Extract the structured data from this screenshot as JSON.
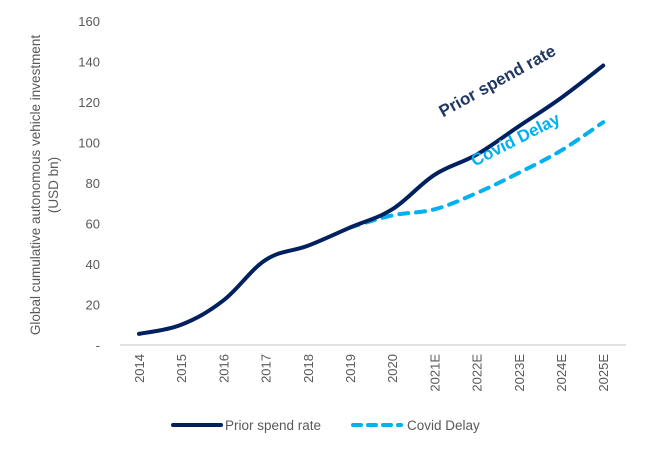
{
  "chart_data": {
    "type": "line",
    "title": "",
    "xlabel": "",
    "ylabel": "Global cumulative autonomous vehicle investment (USD bn)",
    "ylabel_lines": [
      "Global cumulative autonomous vehicle investment",
      "(USD bn)"
    ],
    "ylim": [
      0,
      160
    ],
    "yticks": [
      0,
      20,
      40,
      60,
      80,
      100,
      120,
      140,
      160
    ],
    "ytick_labels": [
      "-",
      "20",
      "40",
      "60",
      "80",
      "100",
      "120",
      "140",
      "160"
    ],
    "grid": false,
    "categories": [
      "2014",
      "2015",
      "2016",
      "2017",
      "2018",
      "2019",
      "2020",
      "2021E",
      "2022E",
      "2023E",
      "2024E",
      "2025E"
    ],
    "series": [
      {
        "name": "Prior spend rate",
        "style": "solid",
        "color": "#002060",
        "values": [
          5.5,
          10,
          22,
          42,
          49,
          58,
          67,
          84,
          94,
          108,
          122,
          138
        ]
      },
      {
        "name": "Covid Delay",
        "style": "dashed",
        "color": "#00B0F0",
        "values": [
          null,
          null,
          null,
          null,
          null,
          58,
          64,
          67,
          75,
          85,
          96,
          110
        ]
      }
    ],
    "annotations": [
      {
        "text": "Prior spend rate",
        "series": "Prior spend rate",
        "color": "#1F3864"
      },
      {
        "text": "Covid Delay",
        "series": "Covid Delay",
        "color": "#00B0F0"
      }
    ],
    "legend": {
      "placement": "bottom",
      "entries": [
        {
          "label": "Prior spend rate",
          "style": "solid",
          "color": "#002060"
        },
        {
          "label": "Covid Delay",
          "style": "dashed",
          "color": "#00B0F0"
        }
      ]
    },
    "axis_color": "#D9D9D9"
  }
}
